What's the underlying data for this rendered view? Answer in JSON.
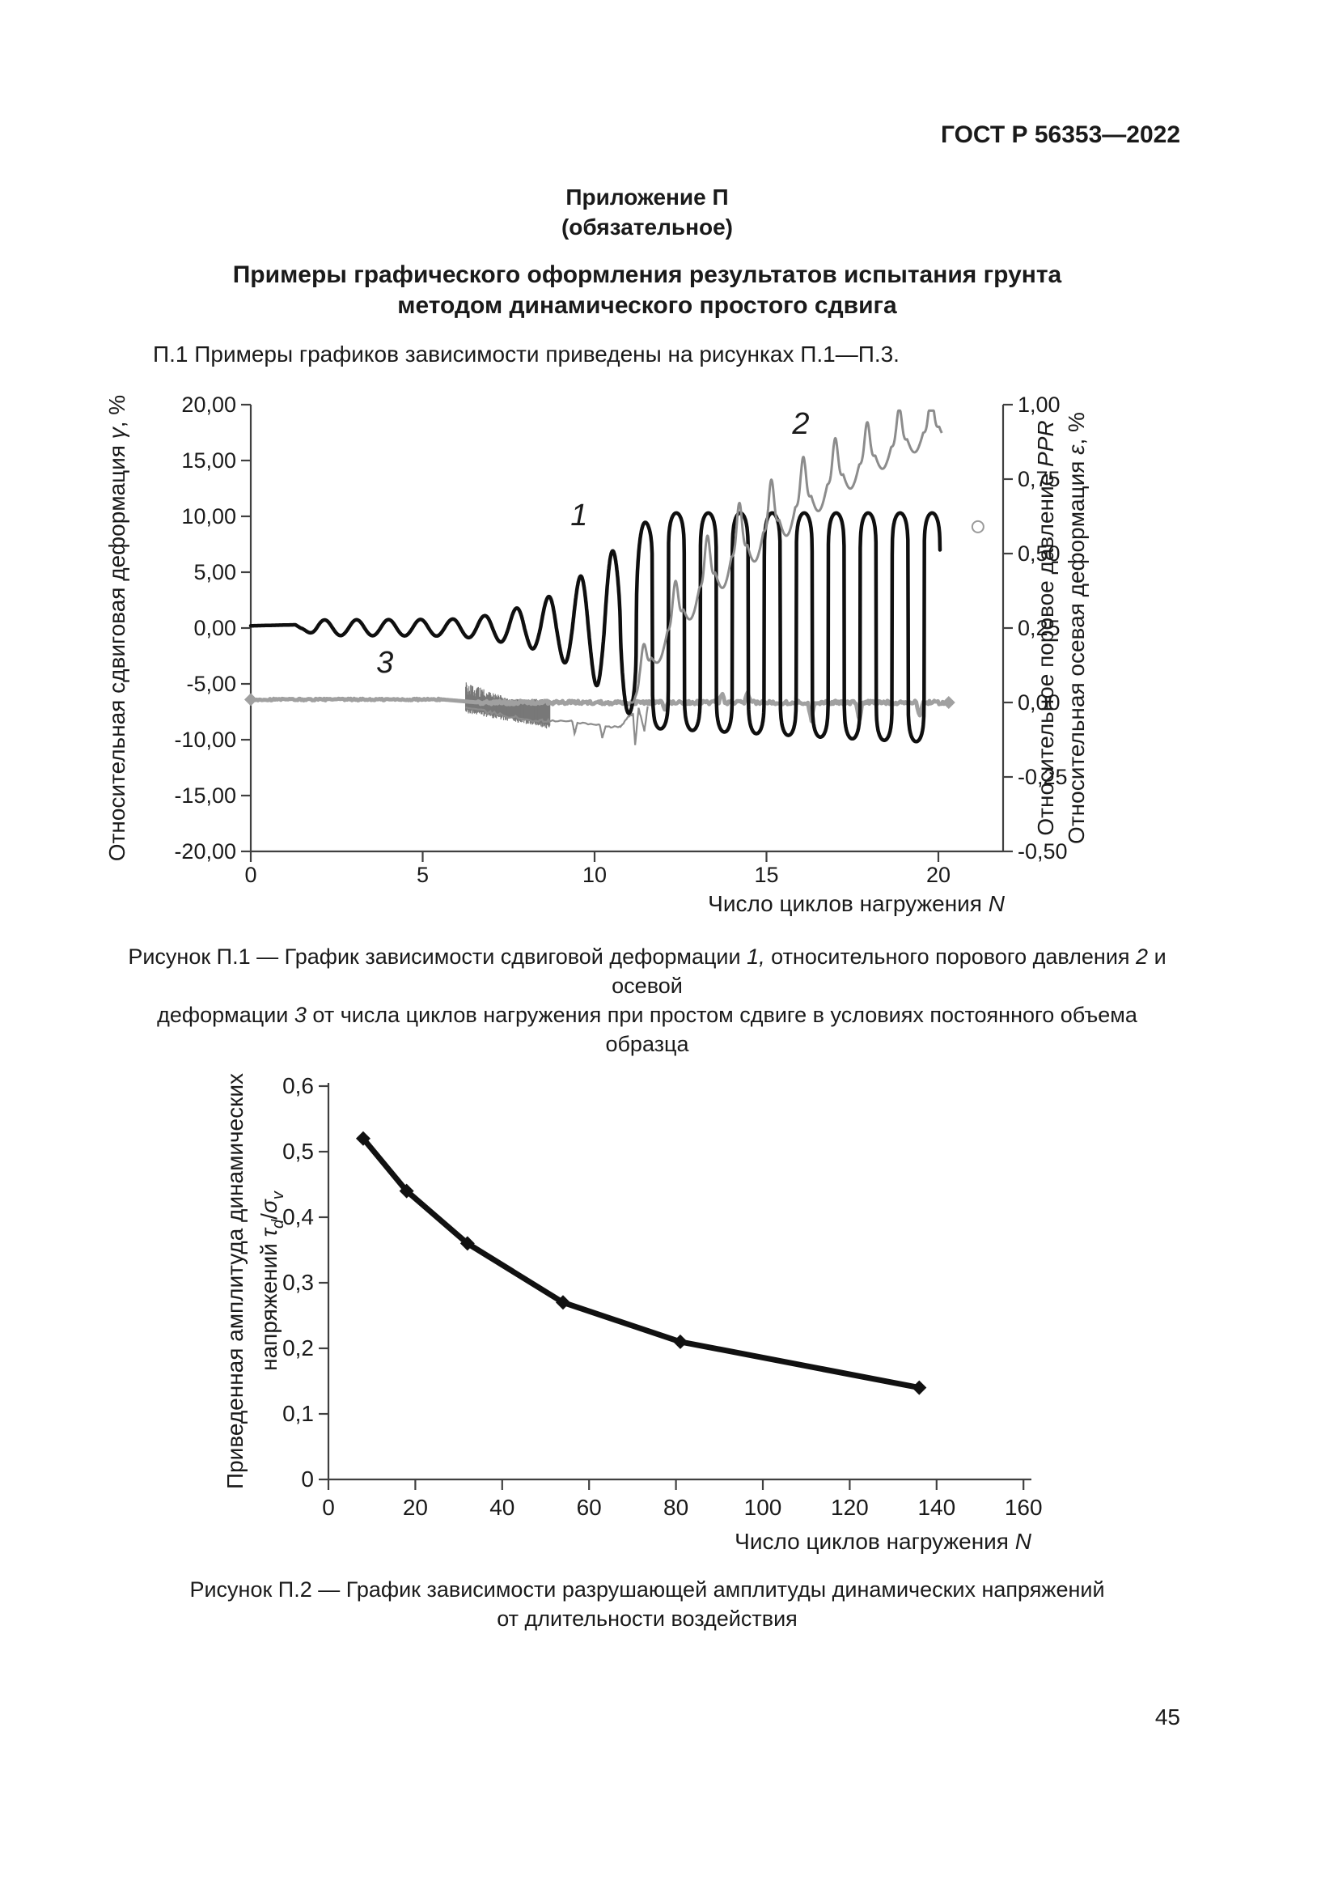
{
  "header": {
    "standard_code": "ГОСТ Р 56353—2022"
  },
  "appendix": {
    "name": "Приложение П",
    "status": "(обязательное)",
    "title_line1": "Примеры графического оформления результатов испытания грунта",
    "title_line2": "методом динамического простого сдвига"
  },
  "intro": "П.1 Примеры графиков зависимости приведены на рисунках П.1—П.3.",
  "footer": {
    "page_number": "45"
  },
  "chart_data": [
    {
      "id": "П.1",
      "type": "line",
      "grid": false,
      "legend_position": "none",
      "x_axis": {
        "title_parts": [
          {
            "t": "Число циклов нагружения "
          },
          {
            "t": "N",
            "i": true
          }
        ],
        "min": 0,
        "max": 21.9,
        "ticks": [
          0,
          5,
          10,
          15,
          20
        ],
        "tick_labels": [
          "0",
          "5",
          "10",
          "15",
          "20"
        ]
      },
      "y_left_axis": {
        "title_parts": [
          {
            "t": "Относительная сдвиговая деформация "
          },
          {
            "t": "γ",
            "i": true
          },
          {
            "t": ", %"
          }
        ],
        "min": -20,
        "max": 20,
        "ticks": [
          20,
          15,
          10,
          5,
          0,
          -5,
          -10,
          -15,
          -20
        ],
        "tick_labels": [
          "20,00",
          "15,00",
          "10,00",
          "5,00",
          "0,00",
          "-5,00",
          "-10,00",
          "-15,00",
          "-20,00"
        ]
      },
      "y_right_axis": {
        "title1_parts": [
          {
            "t": "Относительное поровое давление "
          },
          {
            "t": "PPR",
            "i": true
          }
        ],
        "title2_parts": [
          {
            "t": "Относительная осевая деформация "
          },
          {
            "t": "ε",
            "i": true
          },
          {
            "t": ", %"
          }
        ],
        "min": -0.5,
        "max": 1.0,
        "ticks": [
          1.0,
          0.75,
          0.5,
          0.25,
          0.0,
          -0.25,
          -0.5
        ],
        "tick_labels": [
          "1,00",
          "0,75",
          "0,50",
          "0,25",
          "0,00",
          "-0,25",
          "-0,50"
        ]
      },
      "series": [
        {
          "key": "1",
          "name": "относительная сдвиговая деформация",
          "axis": "left",
          "color": "#0f0f0f",
          "line_width": 4.5,
          "label_pos_n_gamma": [
            9.55,
            9.2
          ],
          "period": 0.93,
          "phase_start": 1.45,
          "envelope_pos": [
            [
              0,
              0
            ],
            [
              1.45,
              0.1
            ],
            [
              1.9,
              0.72
            ],
            [
              5.8,
              0.78
            ],
            [
              6.8,
              1.1
            ],
            [
              7.7,
              1.75
            ],
            [
              8.6,
              2.7
            ],
            [
              9.4,
              4.2
            ],
            [
              10,
              5.6
            ],
            [
              10.6,
              7.1
            ],
            [
              11.2,
              8.7
            ],
            [
              11.75,
              10.3
            ],
            [
              20.1,
              10.3
            ]
          ],
          "envelope_neg": [
            [
              0,
              0
            ],
            [
              1.45,
              0.1
            ],
            [
              1.9,
              0.66
            ],
            [
              5.8,
              0.72
            ],
            [
              6.8,
              0.98
            ],
            [
              7.7,
              1.5
            ],
            [
              8.6,
              2.15
            ],
            [
              9.4,
              3.6
            ],
            [
              10,
              5.0
            ],
            [
              10.6,
              6.6
            ],
            [
              11.2,
              8.2
            ],
            [
              11.75,
              9.0
            ],
            [
              15,
              9.5
            ],
            [
              18,
              10.0
            ],
            [
              19.6,
              10.2
            ],
            [
              20.05,
              11.3
            ]
          ],
          "squareness": [
            [
              0,
              1
            ],
            [
              10.2,
              1
            ],
            [
              11,
              0.5
            ],
            [
              11.75,
              0.1
            ],
            [
              20.1,
              0.09
            ]
          ],
          "flat_start_value": 0.2
        },
        {
          "key": "2",
          "name": "относительное поровое давление PPR",
          "axis": "right",
          "color": "#8c8c8c",
          "line_width": 3,
          "label_pos_n_gamma": [
            16.0,
            17.4
          ],
          "start_n": 11.05,
          "end_n": 20.1,
          "period": 0.93,
          "peak_phase_n": 11.42,
          "trend": [
            [
              11.05,
              0.0
            ],
            [
              11.5,
              0.12
            ],
            [
              12,
              0.22
            ],
            [
              12.5,
              0.3
            ],
            [
              13,
              0.38
            ],
            [
              14,
              0.49
            ],
            [
              15,
              0.58
            ],
            [
              16,
              0.67
            ],
            [
              17,
              0.75
            ],
            [
              18,
              0.82
            ],
            [
              19,
              0.88
            ],
            [
              20.1,
              0.93
            ]
          ],
          "osc_amp": [
            [
              11.05,
              0.06
            ],
            [
              12,
              0.1
            ],
            [
              14,
              0.13
            ],
            [
              16,
              0.12
            ],
            [
              18,
              0.1
            ],
            [
              20.1,
              0.085
            ]
          ],
          "cap": 0.98
        },
        {
          "key": "3",
          "name": "относительная осевая деформация ε",
          "axis": "right",
          "color": "#a0a0a0",
          "line_width": 5,
          "label_pos_n_gamma": [
            3.9,
            -4.0
          ],
          "base_value": 0.01,
          "end_n": 20.3,
          "flat_jitter": 0.003,
          "late_jitter": 0.006,
          "ramp": {
            "from_n": 5.6,
            "to_n": 6.6,
            "to_value": 0.0
          },
          "noise_band": {
            "from_n": 6.25,
            "to_n": 8.7,
            "top_start": 0.072,
            "top_end": 0.012,
            "bottom_start": -0.02,
            "bottom_end": -0.075,
            "color": "#787878"
          },
          "wedge_color": "#8c8c8c",
          "wedge_points": [
            [
              6.25,
              -0.018
            ],
            [
              7,
              -0.035
            ],
            [
              7.7,
              -0.05
            ],
            [
              8.4,
              -0.062
            ],
            [
              8.7,
              -0.062
            ],
            [
              9.35,
              -0.063
            ],
            [
              9.42,
              -0.105
            ],
            [
              9.5,
              -0.068
            ],
            [
              10.15,
              -0.075
            ],
            [
              10.22,
              -0.118
            ],
            [
              10.32,
              -0.082
            ],
            [
              10.75,
              -0.082
            ],
            [
              11.0,
              -0.045
            ],
            [
              11.12,
              -0.04
            ],
            [
              11.18,
              -0.142
            ],
            [
              11.28,
              -0.02
            ],
            [
              11.45,
              -0.095
            ],
            [
              11.55,
              -0.01
            ]
          ],
          "features": [
            [
              12.05,
              -0.028
            ],
            [
              13.7,
              0.03
            ],
            [
              14.45,
              0.032
            ],
            [
              16.3,
              -0.065
            ],
            [
              17.7,
              -0.06
            ],
            [
              19.45,
              -0.05
            ]
          ],
          "marker_n": [
            0,
            20.3
          ]
        }
      ],
      "outlier_point": {
        "n": 21.15,
        "value_right": 0.59,
        "color": "#9a9a9a"
      },
      "caption_parts": [
        [
          {
            "t": "Рисунок П.1 — График зависимости сдвиговой деформации "
          },
          {
            "t": "1,",
            "i": true
          },
          {
            "t": " относительного порового давления "
          },
          {
            "t": "2",
            "i": true
          },
          {
            "t": " и осевой"
          }
        ],
        [
          {
            "t": "деформации "
          },
          {
            "t": "3",
            "i": true
          },
          {
            "t": " от числа циклов нагружения при простом сдвиге в условиях постоянного объема образца"
          }
        ]
      ]
    },
    {
      "id": "П.2",
      "type": "line",
      "grid": false,
      "legend_position": "none",
      "x_axis": {
        "title_parts": [
          {
            "t": "Число циклов нагружения "
          },
          {
            "t": "N",
            "i": true
          }
        ],
        "min": 0,
        "max": 162,
        "ticks": [
          0,
          20,
          40,
          60,
          80,
          100,
          120,
          140,
          160
        ],
        "tick_labels": [
          "0",
          "20",
          "40",
          "60",
          "80",
          "100",
          "120",
          "140",
          "160"
        ]
      },
      "y_axis": {
        "title_line1_parts": [
          {
            "t": "Приведенная амплитуда динамических"
          }
        ],
        "title_line2_parts": [
          {
            "t": "напряжений "
          },
          {
            "t": "τ",
            "i": true
          },
          {
            "t": "d",
            "i": true,
            "sub": true
          },
          {
            "t": "/"
          },
          {
            "t": "σ",
            "i": true
          },
          {
            "t": "v",
            "i": true,
            "sub": true
          }
        ],
        "min": 0,
        "max": 0.6,
        "ticks": [
          0.6,
          0.5,
          0.4,
          0.3,
          0.2,
          0.1,
          0
        ],
        "tick_labels": [
          "0,6",
          "0,5",
          "0,4",
          "0,3",
          "0,2",
          "0,1",
          "0"
        ]
      },
      "series_name": "разрушающая амплитуда динамических напряжений",
      "color": "#111111",
      "line_width": 7,
      "marker": "diamond",
      "points": [
        [
          8,
          0.52
        ],
        [
          18,
          0.44
        ],
        [
          32,
          0.36
        ],
        [
          54,
          0.27
        ],
        [
          81,
          0.21
        ],
        [
          136,
          0.14
        ]
      ],
      "caption_lines": [
        "Рисунок П.2 — График зависимости разрушающей амплитуды динамических напряжений",
        "от длительности воздействия"
      ]
    }
  ]
}
